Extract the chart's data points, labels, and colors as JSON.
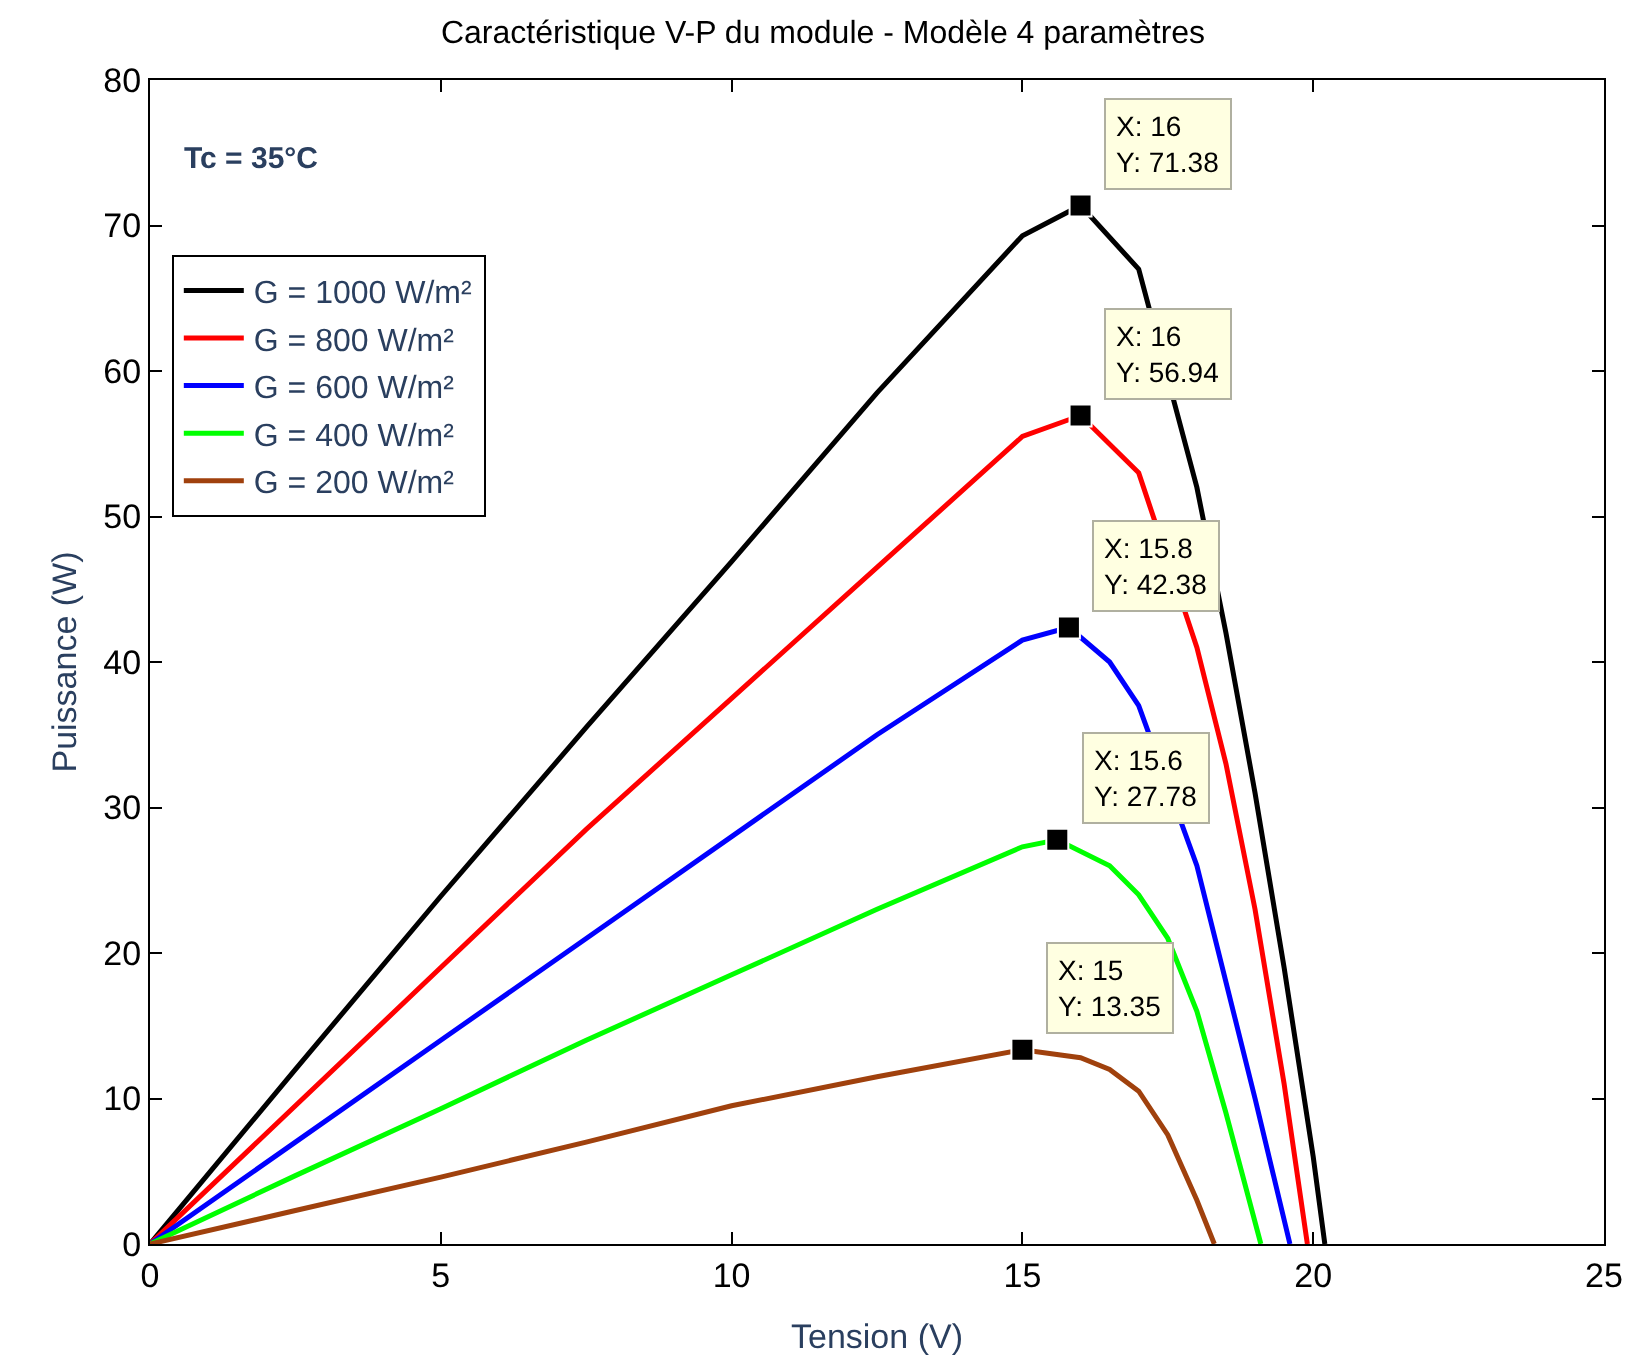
{
  "chart_data": {
    "type": "line",
    "title": "Caractéristique V-P du module - Modèle 4 paramètres",
    "xlabel": "Tension (V)",
    "ylabel": "Puissance (W)",
    "xlim": [
      0,
      25
    ],
    "ylim": [
      0,
      80
    ],
    "xticks": [
      0,
      5,
      10,
      15,
      20,
      25
    ],
    "yticks": [
      0,
      10,
      20,
      30,
      40,
      50,
      60,
      70,
      80
    ],
    "grid": false,
    "legend": "top left",
    "marker": "none",
    "line_style": "solid",
    "series": [
      {
        "name": "G = 1000 W/m²",
        "color": "#000000",
        "x": [
          0,
          2.5,
          5,
          7.5,
          10,
          12.5,
          15,
          16,
          17,
          18,
          18.5,
          19,
          19.5,
          20,
          20.2
        ],
        "values": [
          0,
          12,
          23.9,
          35.5,
          46.9,
          58.5,
          69.3,
          71.38,
          67,
          52,
          42,
          31,
          19,
          6,
          0
        ]
      },
      {
        "name": "G = 800 W/m²",
        "color": "#ff0000",
        "x": [
          0,
          2.5,
          5,
          7.5,
          10,
          12.5,
          15,
          16,
          17,
          18,
          18.5,
          19,
          19.5,
          19.9
        ],
        "values": [
          0,
          9.5,
          19,
          28.5,
          37.5,
          46.5,
          55.5,
          56.94,
          53,
          41,
          33,
          23,
          11,
          0
        ]
      },
      {
        "name": "G = 600 W/m²",
        "color": "#0000ff",
        "x": [
          0,
          2.5,
          5,
          7.5,
          10,
          12.5,
          15,
          15.8,
          16.5,
          17,
          18,
          18.5,
          19,
          19.6
        ],
        "values": [
          0,
          7,
          14,
          21,
          28,
          35,
          41.5,
          42.38,
          40,
          37,
          26,
          18,
          10,
          0
        ]
      },
      {
        "name": "G = 400 W/m²",
        "color": "#00ff00",
        "x": [
          0,
          2.5,
          5,
          7.5,
          10,
          12.5,
          15,
          15.6,
          16.5,
          17,
          17.5,
          18,
          18.5,
          19.1
        ],
        "values": [
          0,
          4.7,
          9.3,
          14,
          18.5,
          23,
          27.3,
          27.78,
          26,
          24,
          21,
          16,
          9,
          0
        ]
      },
      {
        "name": "G = 200 W/m²",
        "color": "#a0410d",
        "x": [
          0,
          2.5,
          5,
          7.5,
          10,
          12.5,
          15,
          16,
          16.5,
          17,
          17.5,
          18,
          18.3
        ],
        "values": [
          0,
          2.3,
          4.6,
          7,
          9.5,
          11.5,
          13.35,
          12.8,
          12,
          10.5,
          7.5,
          3,
          0
        ]
      }
    ],
    "annotations": [
      "Tc = 35°C",
      {
        "text": "X: 16\nY: 71.38",
        "x": 16,
        "y": 71.38
      },
      {
        "text": "X: 16\nY: 56.94",
        "x": 16,
        "y": 56.94
      },
      {
        "text": "X: 15.8\nY: 42.38",
        "x": 15.8,
        "y": 42.38
      },
      {
        "text": "X: 15.6\nY: 27.78",
        "x": 15.6,
        "y": 27.78
      },
      {
        "text": "X: 15\nY: 13.35",
        "x": 15,
        "y": 13.35
      }
    ]
  }
}
